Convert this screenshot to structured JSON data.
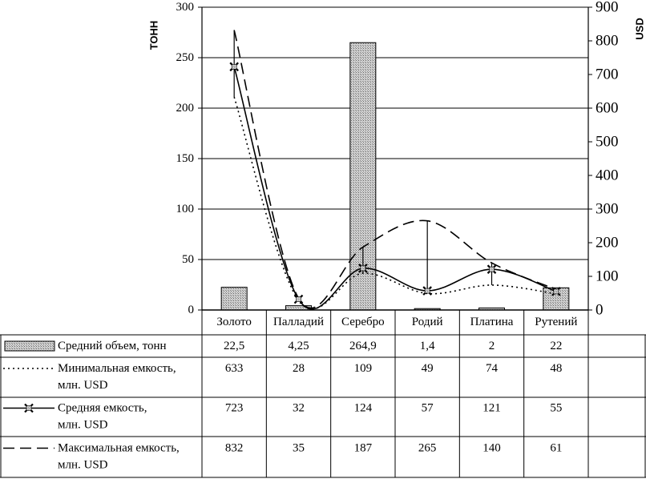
{
  "chart_data": {
    "type": "bar",
    "categories": [
      "Золото",
      "Палладий",
      "Серебро",
      "Родий",
      "Платина",
      "Рутений"
    ],
    "y_left": {
      "label": "ТОНН",
      "range": [
        0,
        300
      ],
      "ticks": [
        0,
        50,
        100,
        150,
        200,
        250,
        300
      ]
    },
    "y_right": {
      "label": "USD",
      "range": [
        0,
        900
      ],
      "ticks": [
        0,
        100,
        200,
        300,
        400,
        500,
        600,
        700,
        800,
        900
      ]
    },
    "grid": true,
    "series": [
      {
        "name": "Средний объем, тонн",
        "type": "bar",
        "axis": "left",
        "values": [
          22.5,
          4.25,
          264.9,
          1.4,
          2,
          22
        ],
        "labels": [
          "22,5",
          "4,25",
          "264,9",
          "1,4",
          "2",
          "22"
        ]
      },
      {
        "name": "Минимальная емкость, млн. USD",
        "type": "line",
        "style": "dotted",
        "axis": "right",
        "values": [
          633,
          28,
          109,
          49,
          74,
          48
        ],
        "labels": [
          "633",
          "28",
          "109",
          "49",
          "74",
          "48"
        ]
      },
      {
        "name": "Средняя емкость, млн. USD",
        "type": "line",
        "style": "solid-marker",
        "axis": "right",
        "values": [
          723,
          32,
          124,
          57,
          121,
          55
        ],
        "labels": [
          "723",
          "32",
          "124",
          "57",
          "121",
          "55"
        ]
      },
      {
        "name": "Максимальная емкость, млн. USD",
        "type": "line",
        "style": "dashed",
        "axis": "right",
        "values": [
          832,
          35,
          187,
          265,
          140,
          61
        ],
        "labels": [
          "832",
          "35",
          "187",
          "265",
          "140",
          "61"
        ]
      }
    ],
    "colors": {
      "line": "#000000",
      "bar_fill": "#bdbdbd",
      "grid": "#000000"
    }
  }
}
